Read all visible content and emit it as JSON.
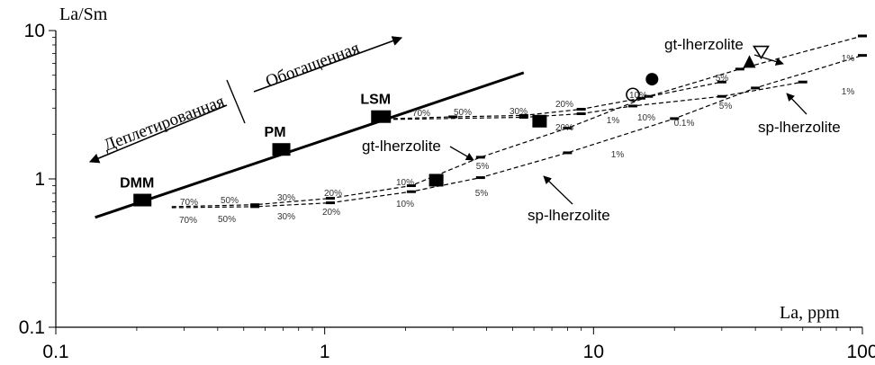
{
  "chart_data": {
    "type": "scatter",
    "xscale": "log",
    "yscale": "log",
    "xlim": [
      0.1,
      100
    ],
    "ylim": [
      0.1,
      10
    ],
    "ylabel": "La/Sm",
    "xlabel": "La, ppm",
    "xticks": [
      "0.1",
      "1",
      "10",
      "100"
    ],
    "yticks": [
      "0.1",
      "1",
      "10"
    ],
    "reservoirs": [
      {
        "name": "DMM",
        "x": 0.21,
        "y": 0.72
      },
      {
        "name": "PM",
        "x": 0.69,
        "y": 1.58
      },
      {
        "name": "LSM",
        "x": 1.62,
        "y": 2.63
      }
    ],
    "mixing_line": {
      "x": [
        0.14,
        5.5
      ],
      "y": [
        0.55,
        5.2
      ]
    },
    "arrows": {
      "depleted": "Деплетированная",
      "enriched": "Обогащенная"
    },
    "melt_curves": [
      {
        "name": "DMM gt-lherzolite",
        "x": [
          0.27,
          0.55,
          1.05,
          2.1,
          3.8,
          8.0,
          16.0,
          35.0,
          100.0
        ],
        "y": [
          0.65,
          0.67,
          0.74,
          0.9,
          1.4,
          2.2,
          3.6,
          5.5,
          9.2
        ],
        "labels": [
          "70%",
          "50%",
          "30%",
          "20%",
          "10%",
          "5%",
          "1%"
        ]
      },
      {
        "name": "DMM sp-lherzolite",
        "x": [
          0.27,
          0.55,
          1.05,
          2.1,
          3.8,
          8.0,
          20.0,
          40.0,
          100.0
        ],
        "y": [
          0.64,
          0.65,
          0.69,
          0.82,
          1.02,
          1.5,
          2.55,
          4.1,
          6.8
        ],
        "labels": [
          "70%",
          "50%",
          "30%",
          "20%",
          "10%",
          "5%",
          "1%",
          "0.1%"
        ]
      },
      {
        "name": "LSM gt-lherzolite",
        "x": [
          1.8,
          3.0,
          5.5,
          9.0,
          15.0,
          30.0
        ],
        "y": [
          2.55,
          2.62,
          2.68,
          2.95,
          3.5,
          4.5
        ],
        "labels": [
          "70%",
          "50%",
          "30%",
          "20%",
          "10%",
          "5%"
        ]
      },
      {
        "name": "LSM sp-lherzolite",
        "x": [
          1.8,
          5.5,
          9.0,
          14.0,
          30.0,
          60.0
        ],
        "y": [
          2.52,
          2.6,
          2.75,
          3.1,
          3.6,
          4.5
        ],
        "labels": [
          "20%",
          "10%",
          "1%"
        ]
      }
    ],
    "samples": [
      {
        "marker": "filled-square",
        "x": 2.6,
        "y": 0.98
      },
      {
        "marker": "filled-square",
        "x": 6.3,
        "y": 2.45
      },
      {
        "marker": "filled-circle",
        "x": 16.5,
        "y": 4.7
      },
      {
        "marker": "open-circle",
        "x": 14.0,
        "y": 3.7
      },
      {
        "marker": "filled-triangle",
        "x": 38.0,
        "y": 6.1
      },
      {
        "marker": "open-triangle",
        "x": 42.0,
        "y": 7.2
      }
    ],
    "curve_labels": [
      "gt-lherzolite",
      "sp-lherzolite",
      "gt-lherzolite",
      "sp-lherzolite"
    ]
  }
}
